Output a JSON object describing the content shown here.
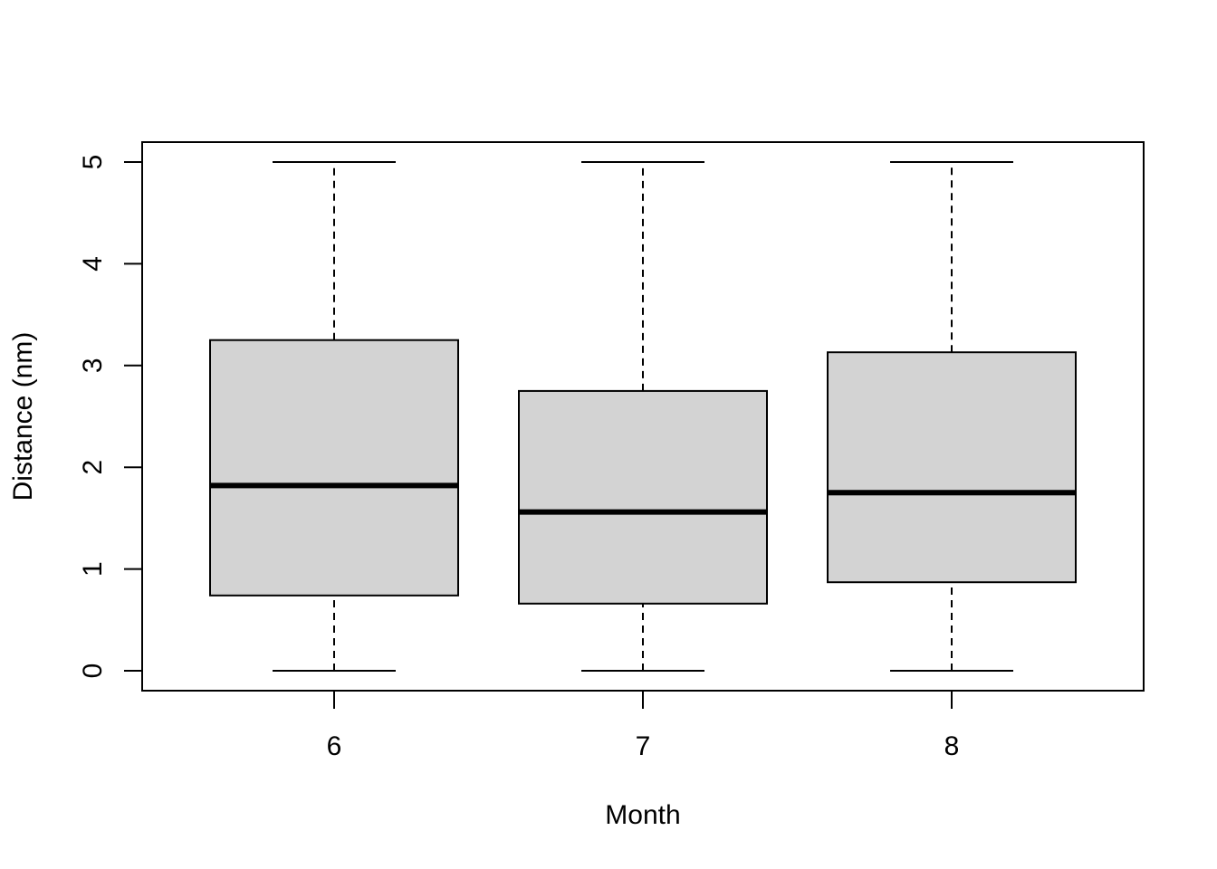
{
  "chart_data": {
    "type": "boxplot",
    "title": "",
    "xlabel": "Month",
    "ylabel": "Distance (nm)",
    "categories": [
      "6",
      "7",
      "8"
    ],
    "boxes": [
      {
        "category": "6",
        "min": 0,
        "q1": 0.74,
        "median": 1.82,
        "q3": 3.25,
        "max": 5
      },
      {
        "category": "7",
        "min": 0,
        "q1": 0.66,
        "median": 1.56,
        "q3": 2.75,
        "max": 5
      },
      {
        "category": "8",
        "min": 0,
        "q1": 0.87,
        "median": 1.75,
        "q3": 3.13,
        "max": 5
      }
    ],
    "ylim": [
      0,
      5
    ],
    "yticks": [
      "0",
      "1",
      "2",
      "3",
      "4",
      "5"
    ],
    "grid": false,
    "colors": {
      "box_fill": "#d3d3d3",
      "stroke": "#000000"
    }
  }
}
